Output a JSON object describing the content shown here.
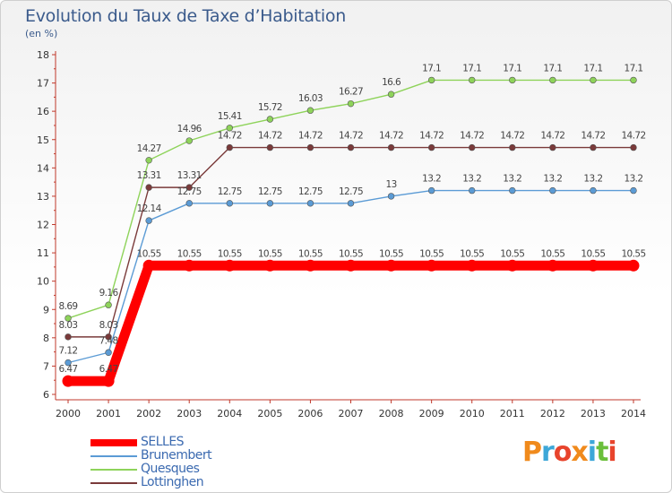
{
  "header": {
    "title": "Evolution du Taux de Taxe d’Habitation",
    "subtitle": "(en %)"
  },
  "brand": {
    "text": "Proxiti",
    "colors": [
      "#f08a1c",
      "#3da7d8",
      "#e8442c",
      "#f08a1c",
      "#3da7d8",
      "#6bbf3b",
      "#e8442c"
    ]
  },
  "chart_data": {
    "type": "line",
    "x": [
      "2000",
      "2001",
      "2002",
      "2003",
      "2004",
      "2005",
      "2006",
      "2007",
      "2008",
      "2009",
      "2010",
      "2011",
      "2012",
      "2013",
      "2014"
    ],
    "ylim": [
      6,
      18
    ],
    "yticks": [
      6,
      7,
      8,
      9,
      10,
      11,
      12,
      13,
      14,
      15,
      16,
      17,
      18
    ],
    "grid": false,
    "legend_position": "bottom-left",
    "series": [
      {
        "name": "SELLES",
        "color": "#ff0000",
        "values": [
          6.47,
          6.47,
          10.55,
          10.55,
          10.55,
          10.55,
          10.55,
          10.55,
          10.55,
          10.55,
          10.55,
          10.55,
          10.55,
          10.55,
          10.55
        ],
        "labels": [
          "6.47",
          "6.47",
          "10.55",
          "10.55",
          "10.55",
          "10.55",
          "10.55",
          "10.55",
          "10.55",
          "10.55",
          "10.55",
          "10.55",
          "10.55",
          "10.55",
          "10.55"
        ]
      },
      {
        "name": "Brunembert",
        "color": "#5b9bd5",
        "values": [
          7.12,
          7.48,
          12.14,
          12.75,
          12.75,
          12.75,
          12.75,
          12.75,
          13,
          13.2,
          13.2,
          13.2,
          13.2,
          13.2,
          13.2
        ],
        "labels": [
          "7.12",
          "7.48",
          "12.14",
          "12.75",
          "12.75",
          "12.75",
          "12.75",
          "12.75",
          "13",
          "13.2",
          "13.2",
          "13.2",
          "13.2",
          "13.2",
          "13.2"
        ]
      },
      {
        "name": "Quesques",
        "color": "#8ed35a",
        "values": [
          8.69,
          9.16,
          14.27,
          14.96,
          15.41,
          15.72,
          16.03,
          16.27,
          16.6,
          17.1,
          17.1,
          17.1,
          17.1,
          17.1,
          17.1
        ],
        "labels": [
          "8.69",
          "9.16",
          "14.27",
          "14.96",
          "15.41",
          "15.72",
          "16.03",
          "16.27",
          "16.6",
          "17.1",
          "17.1",
          "17.1",
          "17.1",
          "17.1",
          "17.1"
        ]
      },
      {
        "name": "Lottinghen",
        "color": "#7a3a3a",
        "values": [
          8.03,
          8.03,
          13.31,
          13.31,
          14.72,
          14.72,
          14.72,
          14.72,
          14.72,
          14.72,
          14.72,
          14.72,
          14.72,
          14.72,
          14.72
        ],
        "labels": [
          "8.03",
          "8.03",
          "13.31",
          "13.31",
          "14.72",
          "14.72",
          "14.72",
          "14.72",
          "14.72",
          "14.72",
          "14.72",
          "14.72",
          "14.72",
          "14.72",
          "14.72"
        ]
      }
    ]
  }
}
